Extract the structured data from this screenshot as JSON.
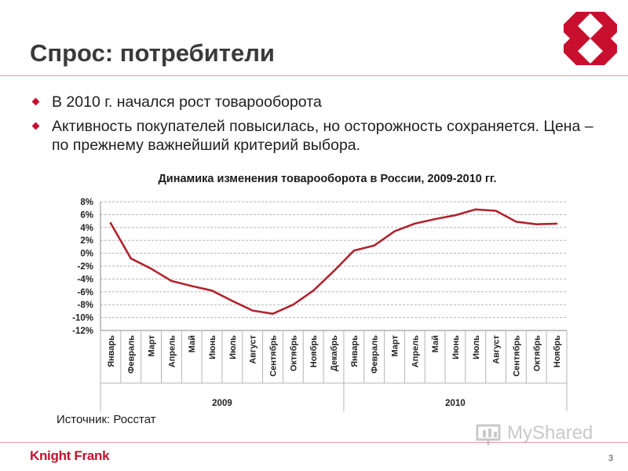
{
  "slide": {
    "title": "Спрос: потребители",
    "bullets": [
      "В 2010 г. начался рост товарооборота",
      "Активность покупателей повысилась, но осторожность сохраняется. Цена – по прежнему важнейший критерий выбора."
    ],
    "source": "Источник: Росстат",
    "brand": "Knight Frank",
    "watermark": "MyShared",
    "page_number": "3",
    "accent_color": "#c8102e",
    "logo_icon": "knight-frank-diamond-logo-icon"
  },
  "chart_data": {
    "type": "line",
    "title": "Динамика изменения товарооборота в России, 2009-2010 гг.",
    "xlabel": "",
    "ylabel": "",
    "ylim": [
      -12,
      8
    ],
    "ytick_values": [
      8,
      6,
      4,
      2,
      0,
      -2,
      -4,
      -6,
      -8,
      -10,
      -12
    ],
    "ytick_labels": [
      "8%",
      "6%",
      "4%",
      "2%",
      "0%",
      "-2%",
      "-4%",
      "-6%",
      "-8%",
      "-10%",
      "-12%"
    ],
    "grid": true,
    "legend": "none",
    "line_color": "#b0252f",
    "categories": [
      "Январь",
      "Февраль",
      "Март",
      "Апрель",
      "Май",
      "Июнь",
      "Июль",
      "Август",
      "Сентябрь",
      "Октябрь",
      "Ноябрь",
      "Декабрь",
      "Январь",
      "Февраль",
      "Март",
      "Апрель",
      "Май",
      "Июнь",
      "Июль",
      "Август",
      "Сентябрь",
      "Октябрь",
      "Ноябрь"
    ],
    "groups": [
      {
        "label": "2009",
        "count": 12
      },
      {
        "label": "2010",
        "count": 11
      }
    ],
    "series": [
      {
        "values": [
          4.7,
          -0.8,
          -2.4,
          -4.3,
          -5.1,
          -5.8,
          -7.4,
          -8.9,
          -9.4,
          -8.0,
          -5.8,
          -2.8,
          0.4,
          1.2,
          3.4,
          4.6,
          5.3,
          5.9,
          6.8,
          6.6,
          4.9,
          4.5,
          4.6
        ]
      }
    ]
  }
}
